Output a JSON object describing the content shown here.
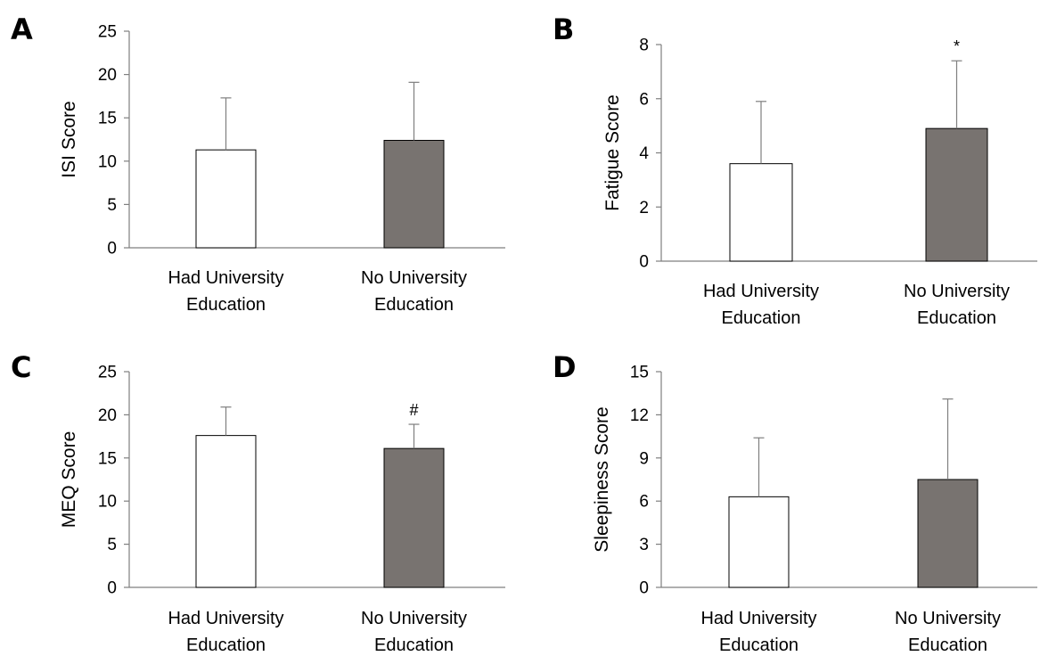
{
  "colors": {
    "bar_university": "#ffffff",
    "bar_no_university": "#787370",
    "bar_stroke": "#000000",
    "axis": "#7f7f7f",
    "error_bar": "#7f7f7f"
  },
  "chart_data": [
    {
      "panel": "A",
      "type": "bar",
      "ylabel": "ISI Score",
      "ylim": [
        0,
        25
      ],
      "yticks": [
        "0",
        "5",
        "10",
        "15",
        "20",
        "25"
      ],
      "categories": [
        {
          "line1": "Had University",
          "line2": "Education"
        },
        {
          "line1": "No University",
          "line2": "Education"
        }
      ],
      "values": [
        11.3,
        12.4
      ],
      "errors": [
        6.0,
        6.7
      ],
      "significance": [
        "",
        ""
      ],
      "grid": false
    },
    {
      "panel": "B",
      "type": "bar",
      "ylabel": "Fatigue Score",
      "ylim": [
        0,
        8
      ],
      "yticks": [
        "0",
        "2",
        "4",
        "6",
        "8"
      ],
      "categories": [
        {
          "line1": "Had University",
          "line2": "Education"
        },
        {
          "line1": "No University",
          "line2": "Education"
        }
      ],
      "values": [
        3.6,
        4.9
      ],
      "errors": [
        2.3,
        2.5
      ],
      "significance": [
        "",
        "*"
      ],
      "grid": false
    },
    {
      "panel": "C",
      "type": "bar",
      "ylabel": "MEQ Score",
      "ylim": [
        0,
        25
      ],
      "yticks": [
        "0",
        "5",
        "10",
        "15",
        "20",
        "25"
      ],
      "categories": [
        {
          "line1": "Had University",
          "line2": "Education"
        },
        {
          "line1": "No University",
          "line2": "Education"
        }
      ],
      "values": [
        17.6,
        16.1
      ],
      "errors": [
        3.3,
        2.8
      ],
      "significance": [
        "",
        "#"
      ],
      "grid": false
    },
    {
      "panel": "D",
      "type": "bar",
      "ylabel": "Sleepiness Score",
      "ylim": [
        0,
        15
      ],
      "yticks": [
        "0",
        "3",
        "6",
        "9",
        "12",
        "15"
      ],
      "categories": [
        {
          "line1": "Had University",
          "line2": "Education"
        },
        {
          "line1": "No University",
          "line2": "Education"
        }
      ],
      "values": [
        6.3,
        7.5
      ],
      "errors": [
        4.1,
        5.6
      ],
      "significance": [
        "",
        ""
      ],
      "grid": false
    }
  ]
}
